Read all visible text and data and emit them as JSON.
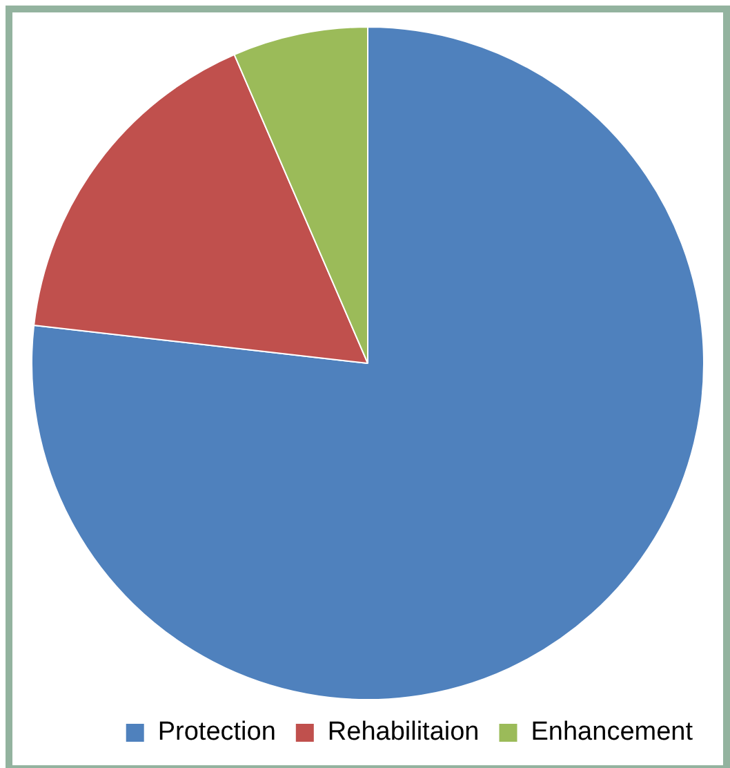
{
  "chart_data": {
    "type": "pie",
    "categories": [
      "Protection",
      "Rehabilitaion",
      "Enhancement"
    ],
    "values": [
      76.8,
      16.7,
      6.5
    ],
    "colors": [
      "#4f81bd",
      "#c0504d",
      "#9bbb59"
    ],
    "legend": "bottom right"
  }
}
